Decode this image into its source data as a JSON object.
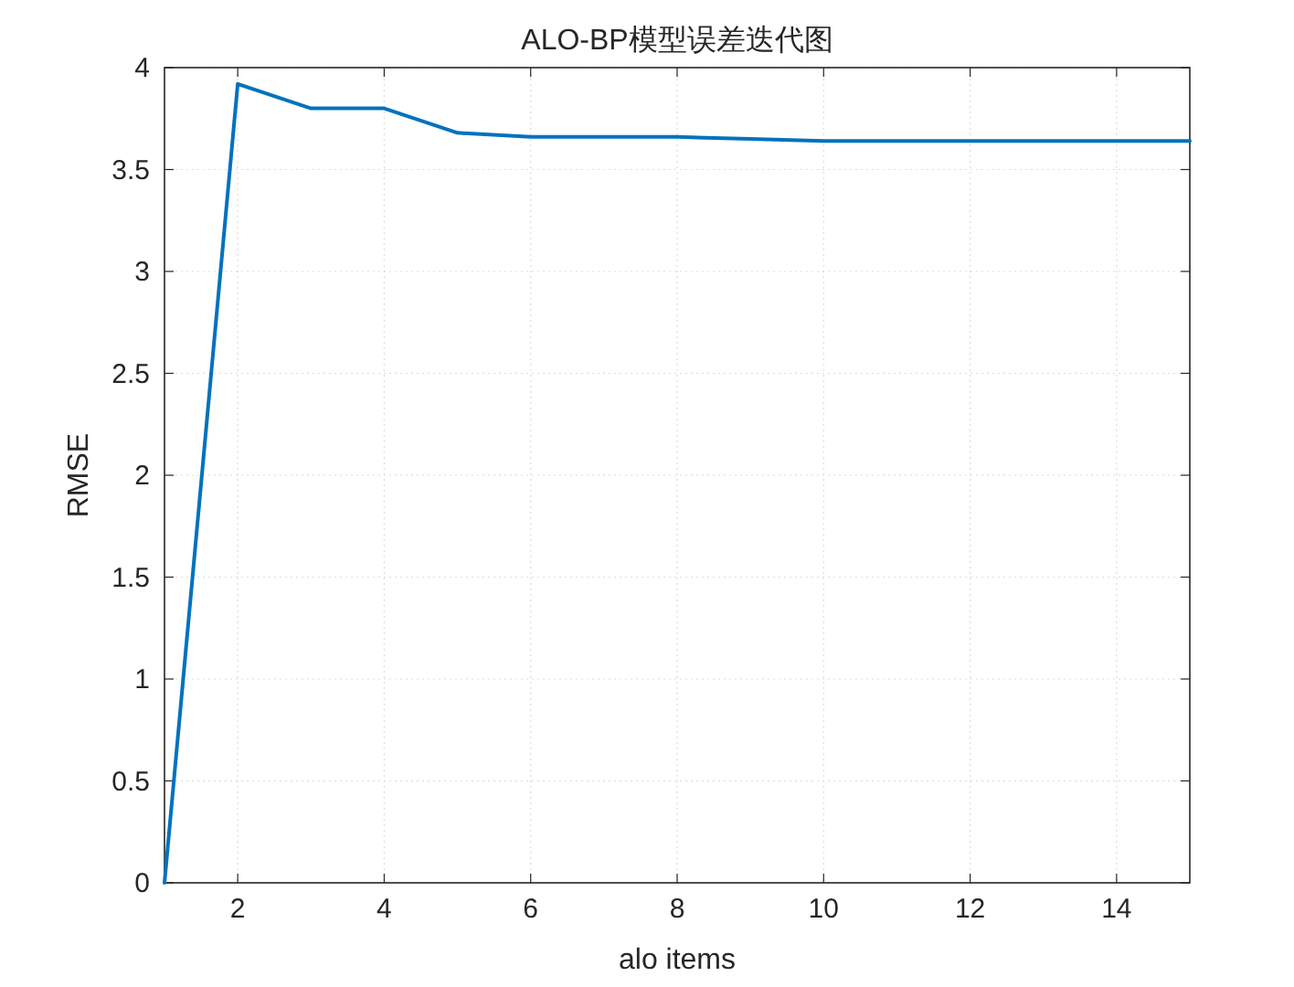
{
  "chart_data": {
    "type": "line",
    "title": "ALO-BP模型误差迭代图",
    "xlabel": "alo items",
    "ylabel": "RMSE",
    "x": [
      1,
      2,
      3,
      4,
      5,
      6,
      7,
      8,
      9,
      10,
      11,
      12,
      13,
      14,
      15
    ],
    "series": [
      {
        "color": "#0072bd",
        "values": [
          0,
          3.92,
          3.8,
          3.8,
          3.68,
          3.66,
          3.66,
          3.66,
          3.65,
          3.64,
          3.64,
          3.64,
          3.64,
          3.64,
          3.64
        ]
      }
    ],
    "xlim": [
      1,
      15
    ],
    "ylim": [
      0,
      4
    ],
    "xticks": [
      2,
      4,
      6,
      8,
      10,
      12,
      14
    ],
    "yticks": [
      0,
      0.5,
      1,
      1.5,
      2,
      2.5,
      3,
      3.5,
      4
    ],
    "grid": true,
    "marker": "none",
    "line_style": "solid"
  }
}
